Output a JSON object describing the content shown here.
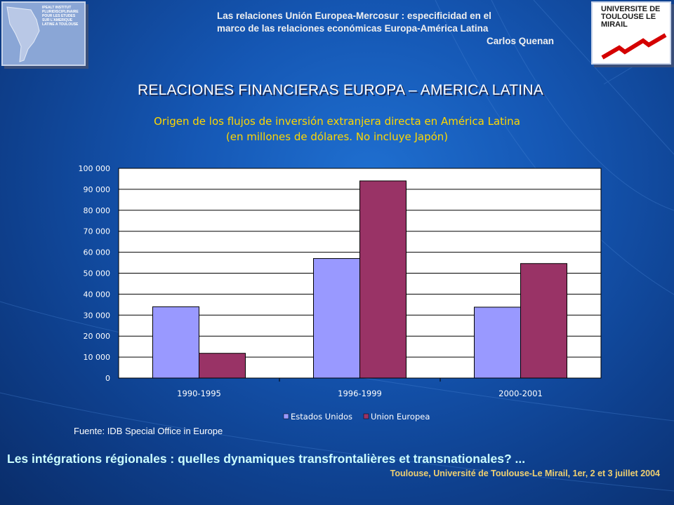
{
  "header": {
    "line1": "Las relaciones Unión Europea-Mercosur : especificidad en el",
    "line2": "marco de las relaciones económicas Europa-América Latina",
    "author": "Carlos Quenan"
  },
  "logo_left": {
    "text": "IPEALT INSTITUT PLURIDISCIPLINAIRE POUR LES ETUDES SUR L'AMERIQUE LATINE A TOULOUSE"
  },
  "logo_right": {
    "text": "UNIVERSITE DE TOULOUSE LE MIRAIL"
  },
  "section_title": "RELACIONES FINANCIERAS EUROPA – AMERICA LATINA",
  "chart_title_line1": "Origen de los flujos de inversión extranjera directa en América Latina",
  "chart_title_line2": "(en millones de dólares. No incluye Japón)",
  "source": "Fuente:  IDB Special Office in Europe",
  "footer_main": "Les intégrations régionales : quelles dynamiques transfrontalières et transnationales? ...",
  "footer_sub": "Toulouse, Université de Toulouse-Le Mirail, 1er, 2 et 3 juillet 2004",
  "colors": {
    "series1": "#9999ff",
    "series2": "#993366",
    "plot_bg": "#ffffff",
    "title": "#ffd700"
  },
  "chart_data": {
    "type": "bar",
    "title": "",
    "categories": [
      "1990-1995",
      "1996-1999",
      "2000-2001"
    ],
    "series": [
      {
        "name": "Estados Unidos",
        "values": [
          34000,
          57000,
          33800
        ]
      },
      {
        "name": "Union Europea",
        "values": [
          11800,
          94000,
          54600
        ]
      }
    ],
    "ylim": [
      0,
      100000
    ],
    "yticks": [
      "0",
      "10 000",
      "20 000",
      "30 000",
      "40 000",
      "50 000",
      "60 000",
      "70 000",
      "80 000",
      "90 000",
      "100 000"
    ],
    "grid": true,
    "legend": "bottom",
    "xlabel": "",
    "ylabel": ""
  }
}
